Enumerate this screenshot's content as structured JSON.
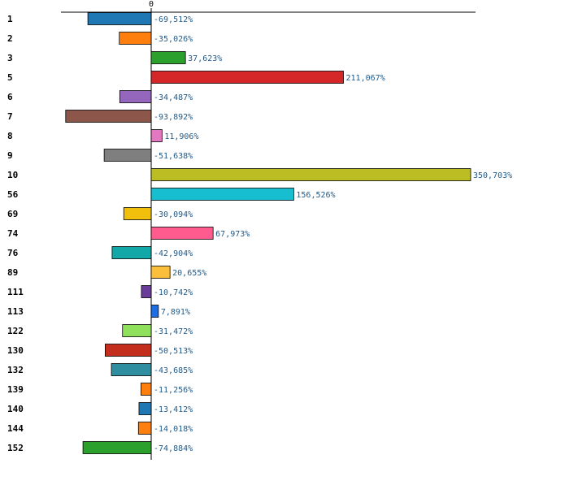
{
  "chart_data": {
    "type": "bar",
    "orientation": "horizontal",
    "title": "",
    "xlabel": "",
    "ylabel": "",
    "zero_tick_label": "0",
    "xlim": [
      -100,
      360
    ],
    "categories": [
      "1",
      "2",
      "3",
      "5",
      "6",
      "7",
      "8",
      "9",
      "10",
      "56",
      "69",
      "74",
      "76",
      "89",
      "111",
      "113",
      "122",
      "130",
      "132",
      "139",
      "140",
      "144",
      "152"
    ],
    "values": [
      -69.512,
      -35.026,
      37.623,
      211.067,
      -34.487,
      -93.892,
      11.906,
      -51.638,
      350.703,
      156.526,
      -30.094,
      67.973,
      -42.904,
      20.655,
      -10.742,
      7.891,
      -31.472,
      -50.513,
      -43.685,
      -11.256,
      -13.412,
      -14.018,
      -74.884
    ],
    "value_labels": [
      "-69,512%",
      "-35,026%",
      "37,623%",
      "211,067%",
      "-34,487%",
      "-93,892%",
      "11,906%",
      "-51,638%",
      "350,703%",
      "156,526%",
      "-30,094%",
      "67,973%",
      "-42,904%",
      "20,655%",
      "-10,742%",
      "7,891%",
      "-31,472%",
      "-50,513%",
      "-43,685%",
      "-11,256%",
      "-13,412%",
      "-14,018%",
      "-74,884%"
    ],
    "colors": [
      "#1f77b4",
      "#ff7f0e",
      "#2ca02c",
      "#d62728",
      "#9467bd",
      "#8c564b",
      "#e377c2",
      "#7f7f7f",
      "#bcbd22",
      "#17becf",
      "#f0c00d",
      "#ff5b8e",
      "#12a8a8",
      "#fcbf3b",
      "#6a3d9a",
      "#1c6ee8",
      "#8fe05a",
      "#c42e1c",
      "#2f8fa0",
      "#ff7f0e",
      "#1f77b4",
      "#ff7f0e",
      "#2ca02c"
    ]
  }
}
